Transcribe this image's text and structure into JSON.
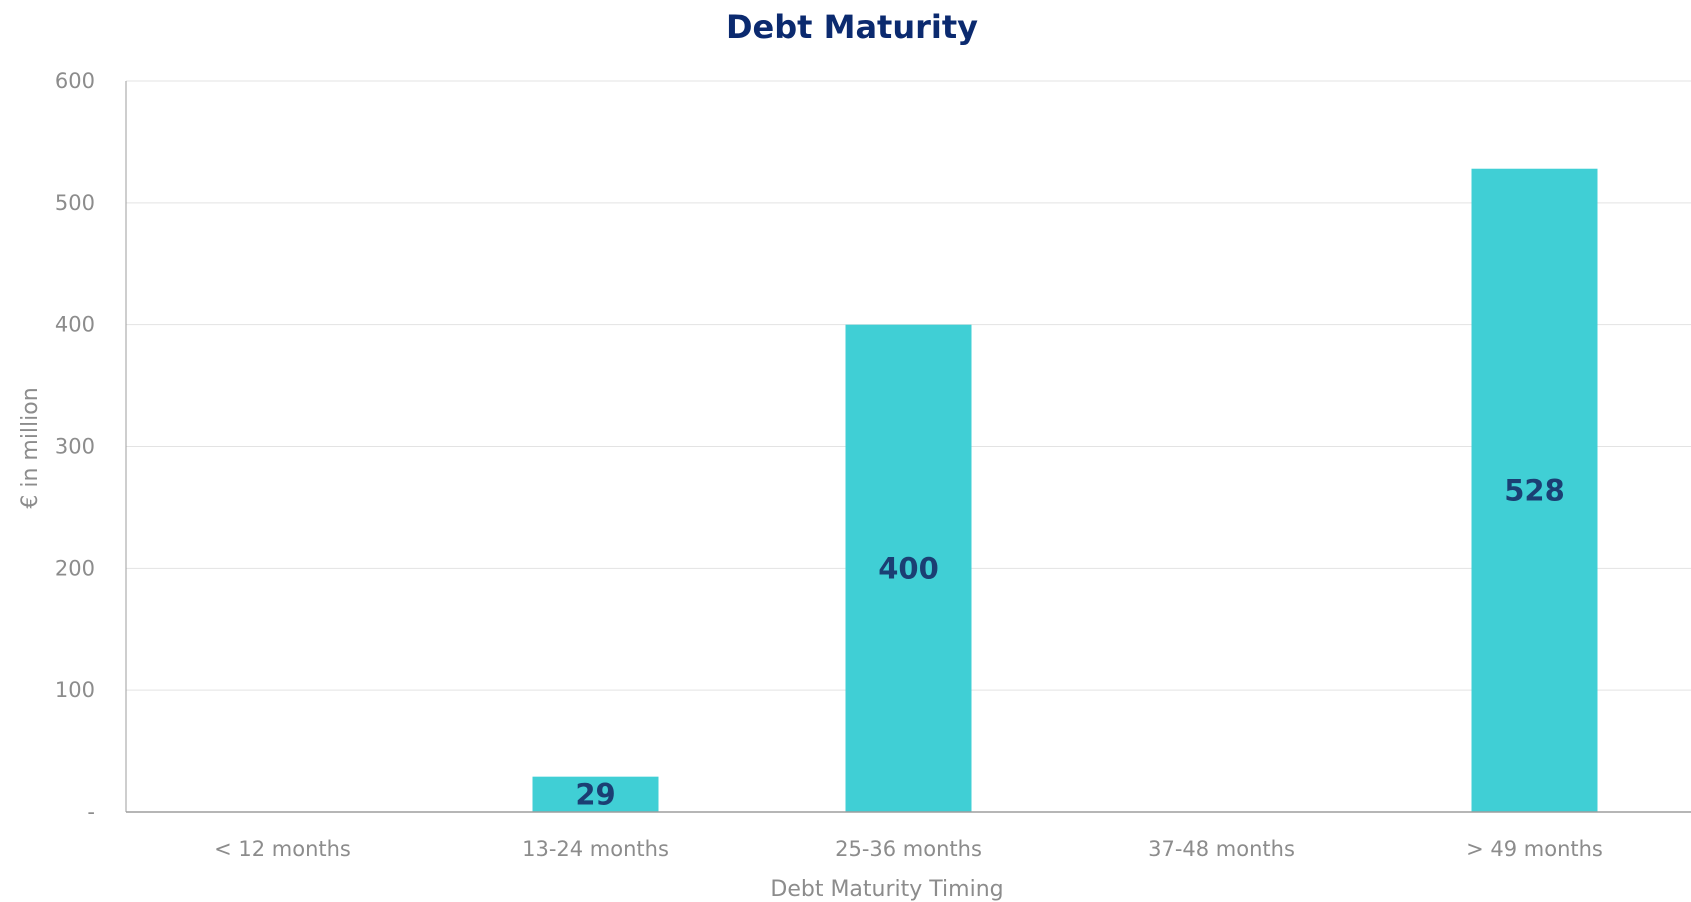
{
  "chart_data": {
    "type": "bar",
    "title": "Debt Maturity",
    "xlabel": "Debt Maturity Timing",
    "ylabel": "€ in million",
    "categories": [
      "< 12 months",
      "13-24 months",
      "25-36 months",
      "37-48 months",
      "> 49 months"
    ],
    "values": [
      0,
      29,
      400,
      0,
      528
    ],
    "data_labels": [
      "",
      "29",
      "400",
      "",
      "528"
    ],
    "ylim": [
      0,
      600
    ],
    "yticks": [
      0,
      100,
      200,
      300,
      400,
      500,
      600
    ],
    "ytick_labels": [
      "-",
      "100",
      "200",
      "300",
      "400",
      "500",
      "600"
    ],
    "grid": true,
    "legend": "none",
    "colors": {
      "bar": "#40CFD5",
      "title": "#0B2A6F",
      "data_label": "#1B3F73",
      "axis_text": "#8C8C8C",
      "grid": "#E3E3E3",
      "axis_line": "#9E9E9E"
    }
  }
}
